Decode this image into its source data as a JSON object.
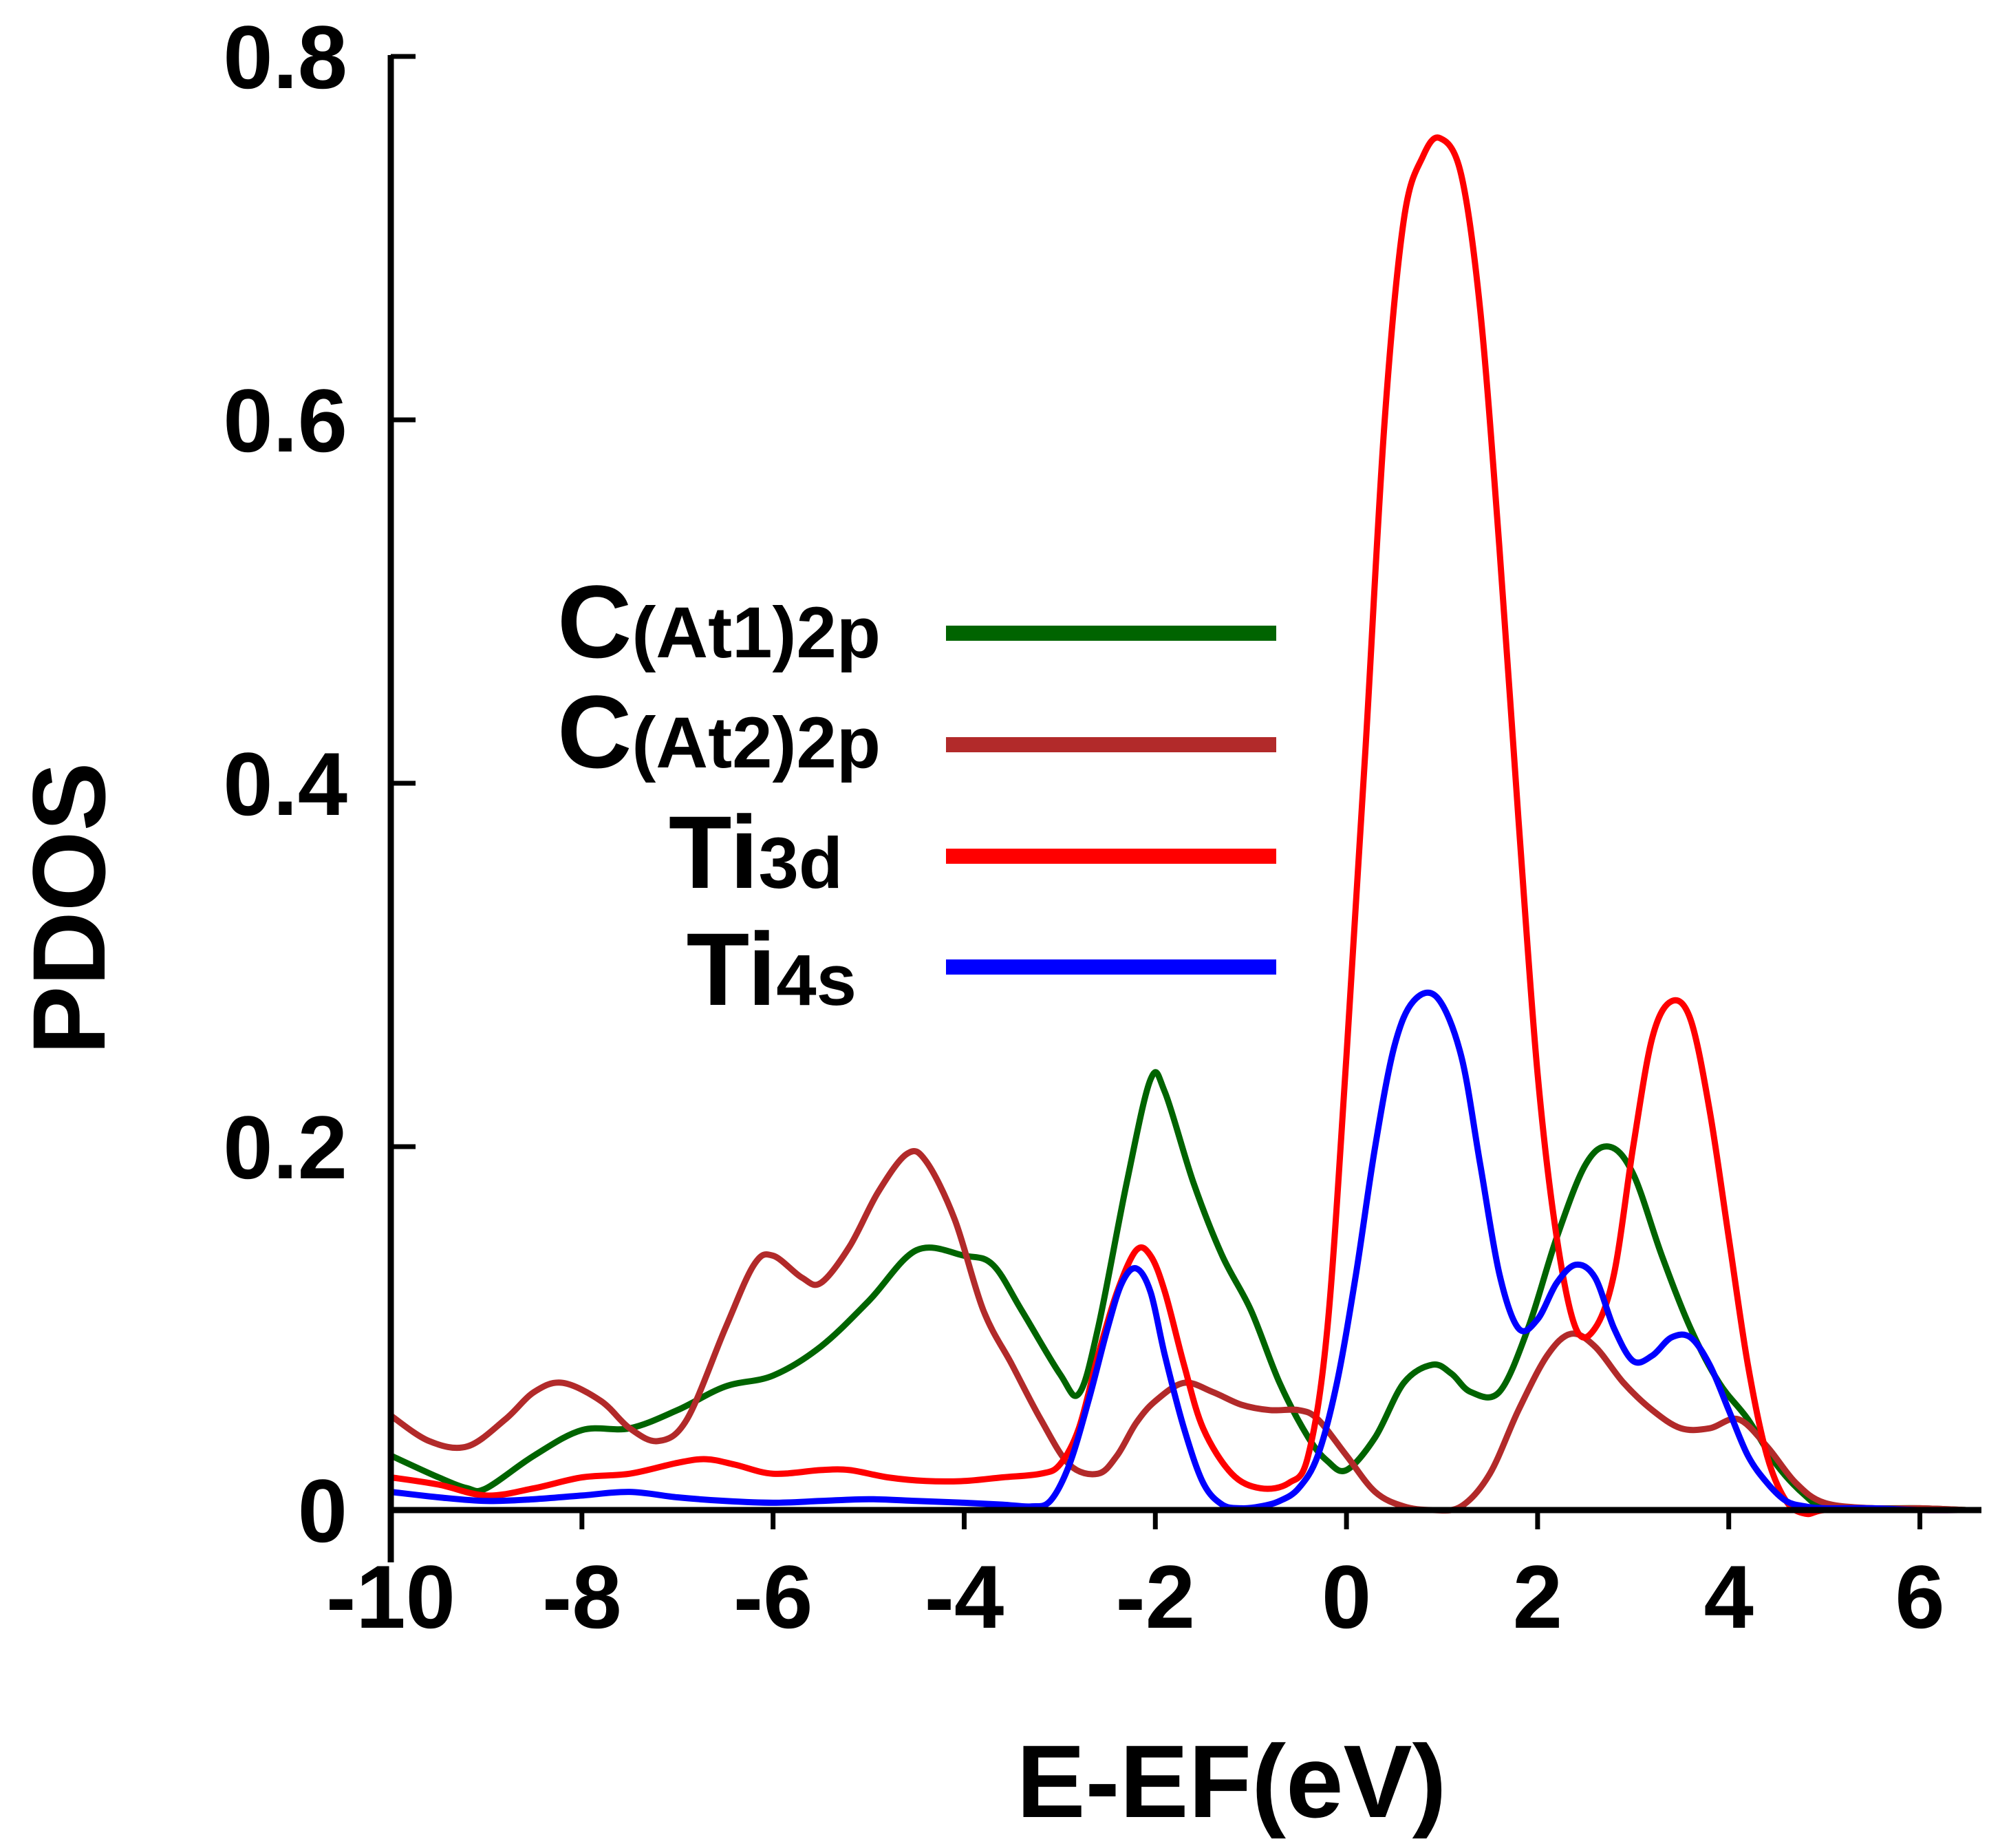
{
  "chart_data": {
    "type": "line",
    "title": "",
    "xlabel": "E-EF(eV)",
    "ylabel": "PDOS",
    "xlim": [
      -10,
      6.5
    ],
    "ylim": [
      0,
      0.8
    ],
    "xticks": [
      -10,
      -8,
      -6,
      -4,
      -2,
      0,
      2,
      4,
      6
    ],
    "xtick_labels": [
      "-10",
      "-8",
      "-6",
      "-4",
      "-2",
      "0",
      "2",
      "4",
      "6"
    ],
    "yticks": [
      0,
      0.2,
      0.4,
      0.6,
      0.8
    ],
    "ytick_labels": [
      "0",
      "0.2",
      "0.4",
      "0.6",
      "0.8"
    ],
    "grid": false,
    "legend_position": "center-left",
    "series": [
      {
        "name": "C(At1)2p",
        "label_main": "C",
        "label_sub": "(At1)2p",
        "color": "#006400",
        "x": [
          -10,
          -9.5,
          -9.2,
          -9,
          -8.5,
          -8,
          -7.5,
          -7,
          -6.5,
          -6,
          -5.5,
          -5,
          -4.5,
          -4,
          -3.7,
          -3.4,
          -3,
          -2.8,
          -2.6,
          -2.3,
          -2.05,
          -1.9,
          -1.6,
          -1.3,
          -1,
          -0.7,
          -0.4,
          -0.2,
          0,
          0.3,
          0.6,
          0.9,
          1.1,
          1.3,
          1.6,
          1.9,
          2.2,
          2.5,
          2.75,
          3,
          3.3,
          3.6,
          3.9,
          4.2,
          4.5,
          4.8,
          5,
          5.5,
          6,
          6.5
        ],
        "y": [
          0.03,
          0.018,
          0.012,
          0.012,
          0.03,
          0.044,
          0.045,
          0.055,
          0.068,
          0.074,
          0.09,
          0.115,
          0.143,
          0.14,
          0.135,
          0.11,
          0.075,
          0.064,
          0.1,
          0.18,
          0.237,
          0.23,
          0.18,
          0.14,
          0.11,
          0.07,
          0.04,
          0.027,
          0.022,
          0.04,
          0.07,
          0.08,
          0.075,
          0.065,
          0.065,
          0.1,
          0.15,
          0.19,
          0.2,
          0.185,
          0.14,
          0.1,
          0.07,
          0.05,
          0.025,
          0.008,
          0.002,
          0.001,
          0.001,
          0.0
        ],
        "points": "-10,0.03;-9.5,0.018;-9.2,0.012;-9,0.012;-8.5,0.03;-8,0.044;-7.5,0.045;-7,0.055;-6.5,0.068;-6,0.074;-5.5,0.09;-5,0.115;-4.5,0.143;-4,0.14;-3.7,0.135;-3.4,0.11;-3,0.075;-2.8,0.064;-2.6,0.1;-2.3,0.18;-2.05,0.237;-1.9,0.23;-1.6,0.18;-1.3,0.14;-1,0.11;-0.7,0.07;-0.4,0.04;-0.2,0.027;0,0.022;0.3,0.04;0.6,0.07;0.9,0.08;1.1,0.075;1.3,0.065;1.6,0.065;1.9,0.1;2.2,0.15;2.5,0.19;2.75,0.2;3,0.185;3.3,0.14;3.6,0.1;3.9,0.07;4.2,0.05;4.5,0.025;4.8,0.008;5,0.002;5.5,0.001;6,0.001;6.5,0.0"
      },
      {
        "name": "C(At2)2p",
        "label_main": "C",
        "label_sub": "(At2)2p",
        "color": "#b22a2a",
        "x": [
          -10,
          -9.6,
          -9.2,
          -8.8,
          -8.5,
          -8.2,
          -7.8,
          -7.5,
          -7.2,
          -6.9,
          -6.5,
          -6.2,
          -6,
          -5.7,
          -5.5,
          -5.2,
          -4.9,
          -4.6,
          -4.4,
          -4.1,
          -3.8,
          -3.5,
          -3.2,
          -2.9,
          -2.6,
          -2.4,
          -2.2,
          -2,
          -1.7,
          -1.4,
          -1.1,
          -0.8,
          -0.5,
          -0.3,
          0,
          0.3,
          0.6,
          0.9,
          1.2,
          1.5,
          1.8,
          2.1,
          2.35,
          2.6,
          2.9,
          3.2,
          3.5,
          3.8,
          4.1,
          4.4,
          4.7,
          5,
          5.5,
          6,
          6.5
        ],
        "y": [
          0.052,
          0.038,
          0.035,
          0.05,
          0.065,
          0.07,
          0.06,
          0.045,
          0.038,
          0.05,
          0.1,
          0.135,
          0.14,
          0.128,
          0.125,
          0.145,
          0.175,
          0.196,
          0.192,
          0.16,
          0.11,
          0.08,
          0.05,
          0.025,
          0.02,
          0.03,
          0.048,
          0.06,
          0.07,
          0.065,
          0.058,
          0.055,
          0.055,
          0.05,
          0.03,
          0.01,
          0.002,
          0.0,
          0.002,
          0.02,
          0.055,
          0.085,
          0.097,
          0.09,
          0.07,
          0.055,
          0.045,
          0.045,
          0.05,
          0.035,
          0.015,
          0.004,
          0.001,
          0.001,
          0.0
        ],
        "points": "-10,0.052;-9.6,0.038;-9.2,0.035;-8.8,0.05;-8.5,0.065;-8.2,0.07;-7.8,0.06;-7.5,0.045;-7.2,0.038;-6.9,0.05;-6.5,0.1;-6.2,0.135;-6,0.14;-5.7,0.128;-5.5,0.125;-5.2,0.145;-4.9,0.175;-4.6,0.196;-4.4,0.192;-4.1,0.16;-3.8,0.11;-3.5,0.08;-3.2,0.05;-2.9,0.025;-2.6,0.02;-2.4,0.03;-2.2,0.048;-2,0.06;-1.7,0.07;-1.4,0.065;-1.1,0.058;-0.8,0.055;-0.5,0.055;-0.3,0.05;0,0.03;0.3,0.01;0.6,0.002;0.9,0.0;1.2,0.002;1.5,0.02;1.8,0.055;2.1,0.085;2.35,0.097;2.6,0.09;2.9,0.07;3.2,0.055;3.5,0.045;3.8,0.045;4.1,0.05;4.4,0.035;4.7,0.015;5,0.004;5.5,0.001;6,0.001;6.5,0.0"
      },
      {
        "name": "Ti3d",
        "label_main": "Ti",
        "label_sub": "3d",
        "color": "#ff0000",
        "x": [
          -10,
          -9.5,
          -9,
          -8.5,
          -8,
          -7.5,
          -7,
          -6.7,
          -6.4,
          -6,
          -5.5,
          -5.2,
          -4.8,
          -4.4,
          -4,
          -3.6,
          -3.2,
          -3,
          -2.8,
          -2.6,
          -2.4,
          -2.2,
          -2.05,
          -1.9,
          -1.7,
          -1.5,
          -1.2,
          -0.9,
          -0.6,
          -0.4,
          -0.2,
          0,
          0.2,
          0.4,
          0.6,
          0.8,
          0.98,
          1.2,
          1.4,
          1.6,
          1.8,
          2,
          2.2,
          2.4,
          2.6,
          2.8,
          3,
          3.2,
          3.4,
          3.6,
          3.8,
          4,
          4.2,
          4.4,
          4.6,
          4.8,
          5,
          5.5,
          6,
          6.5
        ],
        "y": [
          0.018,
          0.014,
          0.008,
          0.012,
          0.018,
          0.02,
          0.026,
          0.028,
          0.025,
          0.02,
          0.022,
          0.022,
          0.018,
          0.016,
          0.016,
          0.018,
          0.02,
          0.025,
          0.045,
          0.085,
          0.12,
          0.143,
          0.14,
          0.12,
          0.08,
          0.045,
          0.02,
          0.012,
          0.015,
          0.03,
          0.1,
          0.25,
          0.42,
          0.6,
          0.71,
          0.745,
          0.755,
          0.735,
          0.66,
          0.53,
          0.38,
          0.24,
          0.15,
          0.1,
          0.1,
          0.13,
          0.2,
          0.26,
          0.28,
          0.27,
          0.22,
          0.15,
          0.08,
          0.03,
          0.005,
          -0.002,
          0.0,
          0.001,
          0.0,
          0.0
        ],
        "points": "-10,0.018;-9.5,0.014;-9,0.008;-8.5,0.012;-8,0.018;-7.5,0.02;-7,0.026;-6.7,0.028;-6.4,0.025;-6,0.02;-5.5,0.022;-5.2,0.022;-4.8,0.018;-4.4,0.016;-4,0.016;-3.6,0.018;-3.2,0.02;-3,0.025;-2.8,0.045;-2.6,0.085;-2.4,0.12;-2.2,0.143;-2.05,0.14;-1.9,0.12;-1.7,0.08;-1.5,0.045;-1.2,0.02;-0.9,0.012;-0.6,0.015;-0.4,0.03;-0.2,0.1;0,0.25;0.2,0.42;0.4,0.6;0.6,0.71;0.8,0.745;0.98,0.755;1.2,0.735;1.4,0.66;1.6,0.53;1.8,0.38;2,0.24;2.2,0.15;2.4,0.1;2.6,0.1;2.8,0.13;3,0.2;3.2,0.26;3.4,0.28;3.6,0.27;3.8,0.22;4,0.15;4.2,0.08;4.4,0.03;4.6,0.005;4.8,-0.002;5,0.0;5.5,0.001;6,0.0;6.5,0.0"
      },
      {
        "name": "Ti4s",
        "label_main": "Ti",
        "label_sub": "4s",
        "color": "#0000ff",
        "x": [
          -10,
          -9.5,
          -9,
          -8.5,
          -8,
          -7.5,
          -7,
          -6.5,
          -6,
          -5.5,
          -5,
          -4.5,
          -4,
          -3.6,
          -3.3,
          -3.1,
          -2.9,
          -2.7,
          -2.5,
          -2.35,
          -2.2,
          -2.05,
          -1.9,
          -1.7,
          -1.5,
          -1.3,
          -1.1,
          -0.9,
          -0.7,
          -0.5,
          -0.3,
          -0.1,
          0.1,
          0.3,
          0.5,
          0.7,
          0.95,
          1.2,
          1.4,
          1.6,
          1.8,
          2,
          2.2,
          2.4,
          2.6,
          2.8,
          3,
          3.2,
          3.4,
          3.6,
          3.8,
          4,
          4.2,
          4.4,
          4.6,
          4.8,
          5,
          5.5,
          6,
          6.5
        ],
        "y": [
          0.01,
          0.007,
          0.005,
          0.006,
          0.008,
          0.01,
          0.007,
          0.005,
          0.004,
          0.005,
          0.006,
          0.005,
          0.004,
          0.003,
          0.002,
          0.005,
          0.025,
          0.06,
          0.1,
          0.125,
          0.133,
          0.12,
          0.085,
          0.045,
          0.015,
          0.003,
          0.001,
          0.002,
          0.005,
          0.012,
          0.03,
          0.07,
          0.13,
          0.2,
          0.255,
          0.28,
          0.282,
          0.25,
          0.19,
          0.13,
          0.1,
          0.105,
          0.125,
          0.135,
          0.128,
          0.1,
          0.082,
          0.085,
          0.095,
          0.095,
          0.08,
          0.055,
          0.03,
          0.015,
          0.005,
          0.002,
          0.001,
          0.001,
          0.0,
          0.0
        ],
        "points": "-10,0.01;-9.5,0.007;-9,0.005;-8.5,0.006;-8,0.008;-7.5,0.01;-7,0.007;-6.5,0.005;-6,0.004;-5.5,0.005;-5,0.006;-4.5,0.005;-4,0.004;-3.6,0.003;-3.3,0.002;-3.1,0.005;-2.9,0.025;-2.7,0.06;-2.5,0.1;-2.35,0.125;-2.2,0.133;-2.05,0.12;-1.9,0.085;-1.7,0.045;-1.5,0.015;-1.3,0.003;-1.1,0.001;-0.9,0.002;-0.7,0.005;-0.5,0.012;-0.3,0.03;-0.1,0.07;0.1,0.13;0.3,0.2;0.5,0.255;0.7,0.28;0.95,0.282;1.2,0.25;1.4,0.19;1.6,0.13;1.8,0.1;2,0.105;2.2,0.125;2.4,0.135;2.6,0.128;2.8,0.1;3,0.082;3.2,0.085;3.4,0.095;3.6,0.095;3.8,0.08;4,0.055;4.2,0.03;4.4,0.015;4.6,0.005;4.8,0.002;5,0.001;5.5,0.001;6,0.0;6.5,0.0"
      }
    ]
  }
}
